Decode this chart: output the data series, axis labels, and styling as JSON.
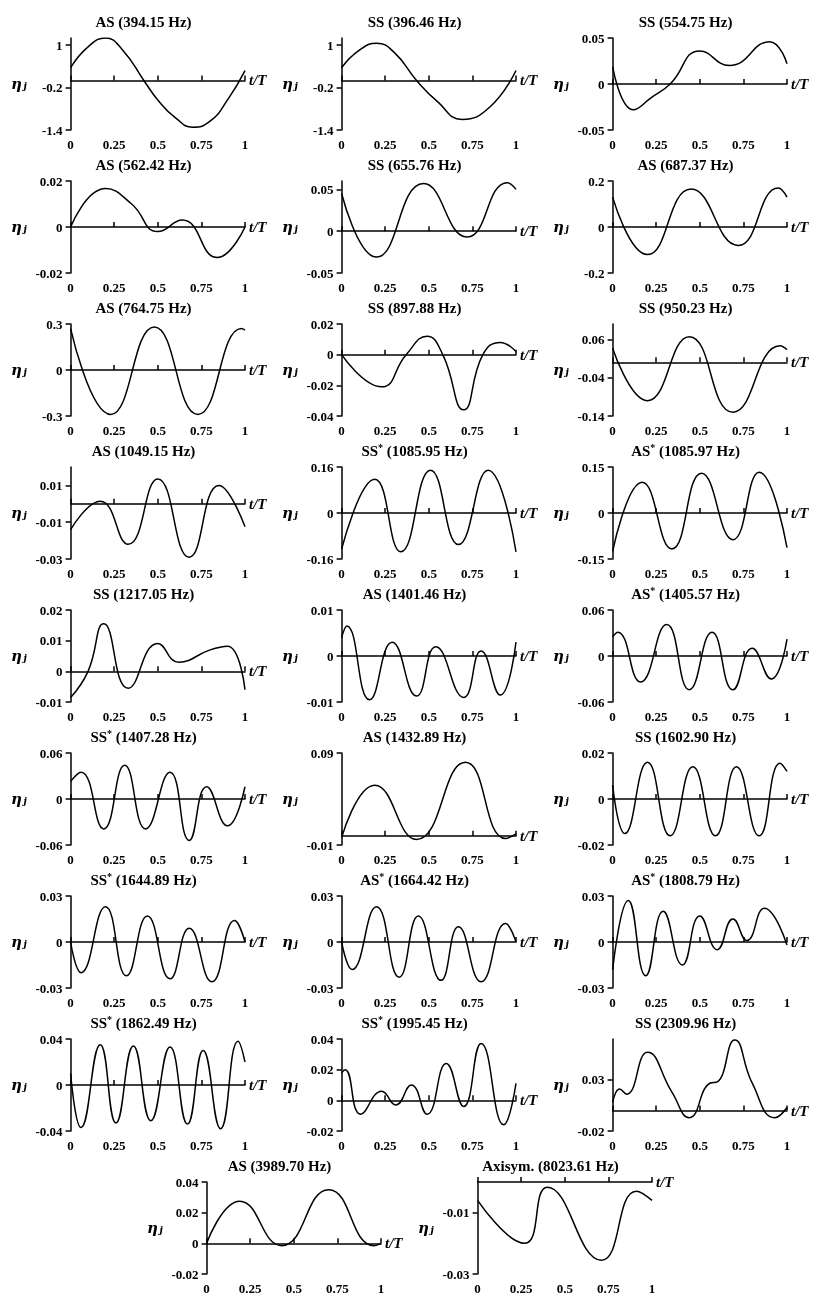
{
  "chart_data": [
    {
      "type": "line",
      "title": "AS (394.15 Hz)",
      "xlabel": "t/T",
      "ylabel": "ηⱼ",
      "color": "#000000",
      "marker": "none",
      "x": [
        0,
        0.1,
        0.2,
        0.3,
        0.42,
        0.5,
        0.6,
        0.7,
        0.8,
        0.9,
        1
      ],
      "values": [
        0.36,
        0.95,
        1.2,
        0.85,
        0,
        -0.55,
        -1.05,
        -1.32,
        -1.15,
        -0.55,
        0.28
      ],
      "xlim": [
        0,
        1
      ],
      "xticks": [
        0,
        0.25,
        0.5,
        0.75,
        1
      ],
      "ylim": [
        -1.4,
        1.2
      ],
      "yticks": [
        1,
        -0.2,
        -1.4
      ]
    },
    {
      "type": "line",
      "title": "SS (396.46 Hz)",
      "xlabel": "t/T",
      "ylabel": "ηⱼ",
      "color": "#000000",
      "marker": "none",
      "x": [
        0,
        0.1,
        0.2,
        0.3,
        0.43,
        0.55,
        0.69,
        0.85,
        1
      ],
      "values": [
        0.36,
        0.85,
        1.05,
        0.8,
        0,
        -0.6,
        -1.1,
        -0.75,
        0.28
      ],
      "xlim": [
        0,
        1
      ],
      "xticks": [
        0,
        0.25,
        0.5,
        0.75,
        1
      ],
      "ylim": [
        -1.4,
        1.2
      ],
      "yticks": [
        1,
        -0.2,
        -1.4
      ]
    },
    {
      "type": "line",
      "title": "SS (554.75 Hz)",
      "xlabel": "t/T",
      "ylabel": "ηⱼ",
      "color": "#000000",
      "marker": "none",
      "x": [
        0,
        0.12,
        0.22,
        0.33,
        0.5,
        0.67,
        0.9,
        1
      ],
      "values": [
        0.019,
        -0.028,
        -0.015,
        0,
        0.036,
        0.02,
        0.046,
        0.022
      ],
      "xlim": [
        0,
        1
      ],
      "xticks": [
        0,
        0.25,
        0.5,
        0.75,
        1
      ],
      "ylim": [
        -0.05,
        0.05
      ],
      "yticks": [
        0.05,
        0,
        -0.05
      ]
    },
    {
      "type": "line",
      "title": "AS (562.42 Hz)",
      "xlabel": "t/T",
      "ylabel": "ηⱼ",
      "color": "#000000",
      "marker": "none",
      "x": [
        0,
        0.2,
        0.35,
        0.5,
        0.64,
        0.84,
        1
      ],
      "values": [
        0,
        0.0167,
        0.01,
        -0.002,
        0.003,
        -0.0133,
        0
      ],
      "xlim": [
        0,
        1
      ],
      "xticks": [
        0,
        0.25,
        0.5,
        0.75,
        1
      ],
      "ylim": [
        -0.02,
        0.02
      ],
      "yticks": [
        0.02,
        0,
        -0.02
      ]
    },
    {
      "type": "line",
      "title": "SS (655.76 Hz)",
      "xlabel": "t/T",
      "ylabel": "ηⱼ",
      "color": "#000000",
      "marker": "none",
      "x": [
        0,
        0.2,
        0.47,
        0.72,
        0.95,
        1
      ],
      "values": [
        0.045,
        -0.031,
        0.057,
        -0.007,
        0.058,
        0.05
      ],
      "xlim": [
        0,
        1
      ],
      "xticks": [
        0,
        0.25,
        0.5,
        0.75,
        1
      ],
      "ylim": [
        -0.05,
        0.06
      ],
      "yticks": [
        0.05,
        0,
        -0.05
      ]
    },
    {
      "type": "line",
      "title": "AS (687.37 Hz)",
      "xlabel": "t/T",
      "ylabel": "ηⱼ",
      "color": "#000000",
      "marker": "none",
      "x": [
        0,
        0.2,
        0.45,
        0.72,
        0.95,
        1
      ],
      "values": [
        0.13,
        -0.12,
        0.165,
        -0.08,
        0.17,
        0.13
      ],
      "xlim": [
        0,
        1
      ],
      "xticks": [
        0,
        0.25,
        0.5,
        0.75,
        1
      ],
      "ylim": [
        -0.2,
        0.2
      ],
      "yticks": [
        0.2,
        0,
        -0.2
      ]
    },
    {
      "type": "line",
      "title": "AS (764.75 Hz)",
      "xlabel": "t/T",
      "ylabel": "ηⱼ",
      "color": "#000000",
      "marker": "none",
      "x": [
        0,
        0.23,
        0.48,
        0.73,
        0.98,
        1
      ],
      "values": [
        0.27,
        -0.29,
        0.28,
        -0.29,
        0.27,
        0.26
      ],
      "xlim": [
        0,
        1
      ],
      "xticks": [
        0,
        0.25,
        0.5,
        0.75,
        1
      ],
      "ylim": [
        -0.3,
        0.3
      ],
      "yticks": [
        0.3,
        0,
        -0.3
      ]
    },
    {
      "type": "line",
      "title": "SS (897.88 Hz)",
      "xlabel": "t/T",
      "ylabel": "ηⱼ",
      "color": "#000000",
      "marker": "none",
      "x": [
        0,
        0.23,
        0.37,
        0.49,
        0.58,
        0.7,
        0.81,
        0.91,
        1
      ],
      "values": [
        0,
        -0.021,
        0,
        0.012,
        0,
        -0.036,
        0,
        0.008,
        0.002
      ],
      "xlim": [
        0,
        1
      ],
      "xticks": [
        0,
        0.25,
        0.5,
        0.75,
        1
      ],
      "ylim": [
        -0.04,
        0.02
      ],
      "yticks": [
        0.02,
        0,
        -0.02,
        -0.04
      ]
    },
    {
      "type": "line",
      "title": "SS (950.23 Hz)",
      "xlabel": "t/T",
      "ylabel": "ηⱼ",
      "color": "#000000",
      "marker": "none",
      "x": [
        0,
        0.2,
        0.44,
        0.69,
        0.96,
        1
      ],
      "values": [
        0.037,
        -0.1,
        0.067,
        -0.13,
        0.043,
        0.033
      ],
      "xlim": [
        0,
        1
      ],
      "xticks": [
        0,
        0.25,
        0.5,
        0.75,
        1
      ],
      "ylim": [
        -0.14,
        0.1
      ],
      "yticks": [
        0.06,
        -0.04,
        -0.14
      ]
    },
    {
      "type": "line",
      "title": "AS (1049.15 Hz)",
      "xlabel": "t/T",
      "ylabel": "ηⱼ",
      "color": "#000000",
      "marker": "none",
      "x": [
        0,
        0.17,
        0.33,
        0.5,
        0.68,
        0.85,
        1
      ],
      "values": [
        -0.014,
        0.0014,
        -0.022,
        0.0135,
        -0.029,
        0.01,
        -0.0125
      ],
      "xlim": [
        0,
        1
      ],
      "xticks": [
        0,
        0.25,
        0.5,
        0.75,
        1
      ],
      "ylim": [
        -0.03,
        0.02
      ],
      "yticks": [
        0.01,
        -0.01,
        -0.03
      ]
    },
    {
      "type": "line",
      "title": "SS$^{*}$ (1085.95 Hz)",
      "xlabel": "t/T",
      "ylabel": "ηⱼ",
      "color": "#000000",
      "marker": "none",
      "x": [
        0,
        0.19,
        0.34,
        0.51,
        0.67,
        0.84,
        1
      ],
      "values": [
        -0.125,
        0.117,
        -0.135,
        0.149,
        -0.11,
        0.149,
        -0.135
      ],
      "xlim": [
        0,
        1
      ],
      "xticks": [
        0,
        0.25,
        0.5,
        0.75,
        1
      ],
      "ylim": [
        -0.16,
        0.16
      ],
      "yticks": [
        0.16,
        0,
        -0.16
      ]
    },
    {
      "type": "line",
      "title": "AS$^{*}$ (1085.97 Hz)",
      "xlabel": "t/T",
      "ylabel": "ηⱼ",
      "color": "#000000",
      "marker": "none",
      "x": [
        0,
        0.17,
        0.34,
        0.51,
        0.69,
        0.84,
        1
      ],
      "values": [
        -0.125,
        0.1,
        -0.117,
        0.13,
        -0.087,
        0.133,
        -0.113
      ],
      "xlim": [
        0,
        1
      ],
      "xticks": [
        0,
        0.25,
        0.5,
        0.75,
        1
      ],
      "ylim": [
        -0.15,
        0.15
      ],
      "yticks": [
        0.15,
        0,
        -0.15
      ]
    },
    {
      "type": "line",
      "title": "SS (1217.05 Hz)",
      "xlabel": "t/T",
      "ylabel": "ηⱼ",
      "color": "#000000",
      "marker": "none",
      "x": [
        0,
        0.1,
        0.19,
        0.33,
        0.5,
        0.62,
        0.8,
        0.9,
        1
      ],
      "values": [
        -0.0085,
        0,
        0.0155,
        -0.0055,
        0.0091,
        0.003,
        0.007,
        0.0082,
        -0.006
      ],
      "xlim": [
        0,
        1
      ],
      "xticks": [
        0,
        0.25,
        0.5,
        0.75,
        1
      ],
      "ylim": [
        -0.01,
        0.02
      ],
      "yticks": [
        0.02,
        0.01,
        0,
        -0.01
      ]
    },
    {
      "type": "line",
      "title": "AS (1401.46 Hz)",
      "xlabel": "t/T",
      "ylabel": "ηⱼ",
      "color": "#000000",
      "marker": "none",
      "x": [
        0,
        0.03,
        0.16,
        0.29,
        0.43,
        0.54,
        0.7,
        0.8,
        0.91,
        1
      ],
      "values": [
        0.004,
        0.0065,
        -0.0095,
        0.003,
        -0.0087,
        0.002,
        -0.009,
        0.0011,
        -0.0085,
        0.003
      ],
      "xlim": [
        0,
        1
      ],
      "xticks": [
        0,
        0.25,
        0.5,
        0.75,
        1
      ],
      "ylim": [
        -0.01,
        0.01
      ],
      "yticks": [
        0.01,
        0,
        -0.01
      ]
    },
    {
      "type": "line",
      "title": "AS$^{*}$ (1405.57 Hz)",
      "xlabel": "t/T",
      "ylabel": "ηⱼ",
      "color": "#000000",
      "marker": "none",
      "x": [
        0,
        0.03,
        0.16,
        0.31,
        0.44,
        0.57,
        0.69,
        0.8,
        0.91,
        1
      ],
      "values": [
        0.025,
        0.031,
        -0.034,
        0.041,
        -0.044,
        0.031,
        -0.044,
        0.01,
        -0.03,
        0.022
      ],
      "xlim": [
        0,
        1
      ],
      "xticks": [
        0,
        0.25,
        0.5,
        0.75,
        1
      ],
      "ylim": [
        -0.06,
        0.06
      ],
      "yticks": [
        0.06,
        0,
        -0.06
      ]
    },
    {
      "type": "line",
      "title": "SS$^{*}$ (1407.28 Hz)",
      "xlabel": "t/T",
      "ylabel": "ηⱼ",
      "color": "#000000",
      "marker": "none",
      "x": [
        0,
        0.06,
        0.19,
        0.31,
        0.43,
        0.57,
        0.68,
        0.78,
        0.9,
        1
      ],
      "values": [
        0.023,
        0.035,
        -0.039,
        0.044,
        -0.039,
        0.035,
        -0.054,
        0.016,
        -0.035,
        0.016
      ],
      "xlim": [
        0,
        1
      ],
      "xticks": [
        0,
        0.25,
        0.5,
        0.75,
        1
      ],
      "ylim": [
        -0.06,
        0.06
      ],
      "yticks": [
        0.06,
        0,
        -0.06
      ]
    },
    {
      "type": "line",
      "title": "AS (1432.89 Hz)",
      "xlabel": "t/T",
      "ylabel": "ηⱼ",
      "color": "#000000",
      "marker": "none",
      "x": [
        0,
        0.19,
        0.43,
        0.71,
        0.94,
        1
      ],
      "values": [
        -0.002,
        0.055,
        -0.004,
        0.08,
        -0.003,
        0.002
      ],
      "xlim": [
        0,
        1
      ],
      "xticks": [
        0,
        0.25,
        0.5,
        0.75,
        1
      ],
      "ylim": [
        -0.01,
        0.09
      ],
      "yticks": [
        0.09,
        -0.01
      ]
    },
    {
      "type": "line",
      "title": "SS (1602.90 Hz)",
      "xlabel": "t/T",
      "ylabel": "ηⱼ",
      "color": "#000000",
      "marker": "none",
      "x": [
        0,
        0.07,
        0.2,
        0.33,
        0.46,
        0.59,
        0.71,
        0.84,
        0.96,
        1
      ],
      "values": [
        0.006,
        -0.015,
        0.016,
        -0.016,
        0.014,
        -0.016,
        0.014,
        -0.016,
        0.0155,
        0.012
      ],
      "xlim": [
        0,
        1
      ],
      "xticks": [
        0,
        0.25,
        0.5,
        0.75,
        1
      ],
      "ylim": [
        -0.02,
        0.02
      ],
      "yticks": [
        0.02,
        0,
        -0.02
      ]
    },
    {
      "type": "line",
      "title": "SS$^{*}$ (1644.89 Hz)",
      "xlabel": "t/T",
      "ylabel": "ηⱼ",
      "color": "#000000",
      "marker": "none",
      "x": [
        0,
        0.06,
        0.2,
        0.32,
        0.44,
        0.57,
        0.68,
        0.81,
        0.94,
        1
      ],
      "values": [
        0,
        -0.02,
        0.023,
        -0.022,
        0.017,
        -0.024,
        0.009,
        -0.026,
        0.014,
        0
      ],
      "xlim": [
        0,
        1
      ],
      "xticks": [
        0,
        0.25,
        0.5,
        0.75,
        1
      ],
      "ylim": [
        -0.03,
        0.03
      ],
      "yticks": [
        0.03,
        0,
        -0.03
      ]
    },
    {
      "type": "line",
      "title": "AS$^{*}$ (1664.42 Hz)",
      "xlabel": "t/T",
      "ylabel": "ηⱼ",
      "color": "#000000",
      "marker": "none",
      "x": [
        0,
        0.06,
        0.2,
        0.33,
        0.44,
        0.57,
        0.67,
        0.8,
        0.94,
        1
      ],
      "values": [
        0,
        -0.018,
        0.023,
        -0.023,
        0.017,
        -0.025,
        0.01,
        -0.026,
        0.012,
        0
      ],
      "xlim": [
        0,
        1
      ],
      "xticks": [
        0,
        0.25,
        0.5,
        0.75,
        1
      ],
      "ylim": [
        -0.03,
        0.03
      ],
      "yticks": [
        0.03,
        0,
        -0.03
      ]
    },
    {
      "type": "line",
      "title": "AS$^{*}$ (1808.79 Hz)",
      "xlabel": "t/T",
      "ylabel": "ηⱼ",
      "color": "#000000",
      "marker": "none",
      "x": [
        0,
        0.09,
        0.19,
        0.29,
        0.4,
        0.5,
        0.6,
        0.69,
        0.77,
        0.87,
        1
      ],
      "values": [
        -0.018,
        0.027,
        -0.022,
        0.02,
        -0.015,
        0.017,
        -0.005,
        0.015,
        0.001,
        0.022,
        -0.002
      ],
      "xlim": [
        0,
        1
      ],
      "xticks": [
        0,
        0.25,
        0.5,
        0.75,
        1
      ],
      "ylim": [
        -0.03,
        0.03
      ],
      "yticks": [
        0.03,
        0,
        -0.03
      ]
    },
    {
      "type": "line",
      "title": "SS$^{*}$ (1862.49 Hz)",
      "xlabel": "t/T",
      "ylabel": "ηⱼ",
      "color": "#000000",
      "marker": "none",
      "x": [
        0,
        0.06,
        0.17,
        0.26,
        0.36,
        0.46,
        0.57,
        0.67,
        0.76,
        0.86,
        0.96,
        1
      ],
      "values": [
        0.01,
        -0.037,
        0.035,
        -0.033,
        0.034,
        -0.031,
        0.033,
        -0.034,
        0.03,
        -0.038,
        0.038,
        0.02
      ],
      "xlim": [
        0,
        1
      ],
      "xticks": [
        0,
        0.25,
        0.5,
        0.75,
        1
      ],
      "ylim": [
        -0.04,
        0.04
      ],
      "yticks": [
        0.04,
        0,
        -0.04
      ]
    },
    {
      "type": "line",
      "title": "SS$^{*}$ (1995.45 Hz)",
      "xlabel": "t/T",
      "ylabel": "ηⱼ",
      "color": "#000000",
      "marker": "none",
      "x": [
        0,
        0.02,
        0.11,
        0.23,
        0.31,
        0.4,
        0.49,
        0.6,
        0.7,
        0.8,
        0.93,
        1
      ],
      "values": [
        0.018,
        0.02,
        -0.009,
        0.006,
        -0.003,
        0.01,
        -0.009,
        0.024,
        -0.004,
        0.037,
        -0.016,
        0.011
      ],
      "xlim": [
        0,
        1
      ],
      "xticks": [
        0,
        0.25,
        0.5,
        0.75,
        1
      ],
      "ylim": [
        -0.02,
        0.04
      ],
      "yticks": [
        0.04,
        0.02,
        0,
        -0.02
      ]
    },
    {
      "type": "line",
      "title": "SS (2309.96 Hz)",
      "xlabel": "t/T",
      "ylabel": "ηⱼ",
      "color": "#000000",
      "marker": "none",
      "x": [
        0,
        0.04,
        0.08,
        0.2,
        0.34,
        0.44,
        0.56,
        0.6,
        0.7,
        0.8,
        0.93,
        1
      ],
      "values": [
        0.008,
        0.021,
        0.016,
        0.057,
        0.018,
        -0.007,
        0.027,
        0.028,
        0.069,
        0.027,
        -0.007,
        0.003
      ],
      "xlim": [
        0,
        1
      ],
      "xticks": [
        0,
        0.25,
        0.5,
        0.75,
        1
      ],
      "ylim": [
        -0.02,
        0.07
      ],
      "yticks": [
        0.03,
        -0.02
      ]
    },
    {
      "type": "line",
      "title": "AS (3989.70 Hz)",
      "xlabel": "t/T",
      "ylabel": "ηⱼ",
      "color": "#000000",
      "marker": "none",
      "x": [
        0,
        0.19,
        0.43,
        0.7,
        0.96,
        1
      ],
      "values": [
        0,
        0.0275,
        -0.0015,
        0.035,
        -0.0015,
        0
      ],
      "xlim": [
        0,
        1
      ],
      "xticks": [
        0,
        0.25,
        0.5,
        0.75,
        1
      ],
      "ylim": [
        -0.02,
        0.04
      ],
      "yticks": [
        0.04,
        0.02,
        0,
        -0.02
      ]
    },
    {
      "type": "line",
      "title": "Axisym. (8023.61 Hz)",
      "xlabel": "t/T",
      "ylabel": "ηⱼ",
      "color": "#000000",
      "marker": "none",
      "x": [
        0,
        0.27,
        0.4,
        0.71,
        0.91,
        1
      ],
      "values": [
        -0.006,
        -0.02,
        -0.0017,
        -0.0255,
        -0.003,
        -0.006
      ],
      "xlim": [
        0,
        1
      ],
      "xticks": [
        0,
        0.25,
        0.5,
        0.75,
        1
      ],
      "ylim": [
        -0.03,
        0
      ],
      "yticks": [
        -0.01,
        -0.03
      ]
    }
  ]
}
